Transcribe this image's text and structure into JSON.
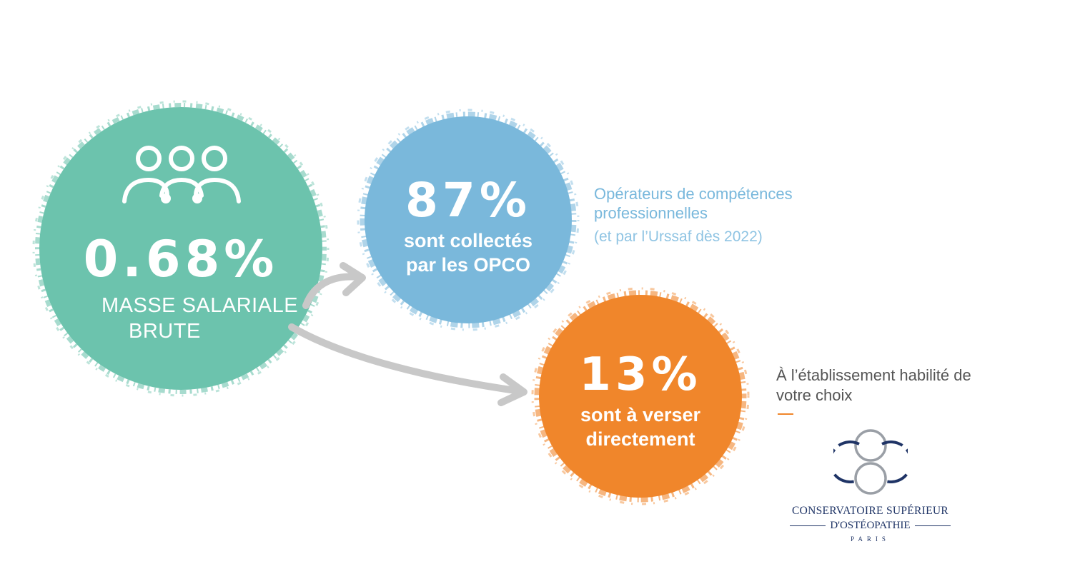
{
  "colors": {
    "green": "#6cc3ad",
    "blue": "#7ab8db",
    "orange": "#f0862b",
    "arrow_gray": "#c8c8c8",
    "navy": "#1f3466"
  },
  "left_circle": {
    "icon": "people-icon",
    "value": "0.68%",
    "label_line1": "MASSE SALARIALE",
    "label_line2": "BRUTE"
  },
  "opco_circle": {
    "value": "87%",
    "label_line1": "sont collectés",
    "label_line2": "par les OPCO",
    "side_title": "Opérateurs de compétences professionnelles",
    "side_note": "(et par l’Urssaf dès 2022)"
  },
  "direct_circle": {
    "value": "13%",
    "label_line1": "sont à verser",
    "label_line2": "directement",
    "side_text": "À l’établissement habilité de votre choix"
  },
  "logo": {
    "icon": "interlocked-rings-logo",
    "name_line1": "CONSERVATOIRE SUPÉRIEUR",
    "name_line2": "D'OSTÉOPATHIE",
    "city": "PARIS"
  }
}
